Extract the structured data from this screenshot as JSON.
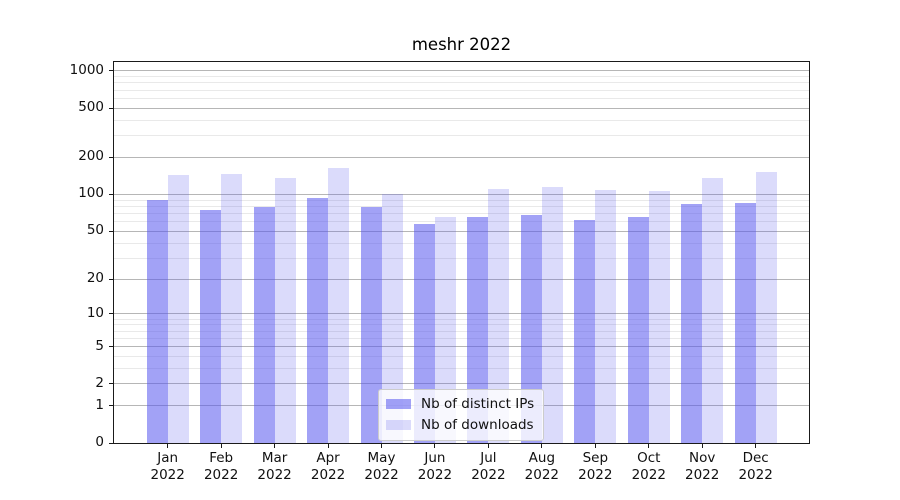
{
  "page": {
    "background": "#ffffff"
  },
  "chart_data": {
    "type": "bar",
    "title": "meshr 2022",
    "categories": [
      "Jan 2022",
      "Feb 2022",
      "Mar 2022",
      "Apr 2022",
      "May 2022",
      "Jun 2022",
      "Jul 2022",
      "Aug 2022",
      "Sep 2022",
      "Oct 2022",
      "Nov 2022",
      "Dec 2022"
    ],
    "month_labels": [
      "Jan",
      "Feb",
      "Mar",
      "Apr",
      "May",
      "Jun",
      "Jul",
      "Aug",
      "Sep",
      "Oct",
      "Nov",
      "Dec"
    ],
    "year_label": "2022",
    "series": [
      {
        "name": "Nb of distinct IPs",
        "color": "rgba(85,85,238,0.55)",
        "color_hex": "#a1a1f5",
        "values": [
          90,
          75,
          79,
          94,
          79,
          57,
          65,
          68,
          62,
          65,
          83,
          86
        ]
      },
      {
        "name": "Nb of downloads",
        "color": "rgba(85,85,238,0.21)",
        "color_hex": "#dcdcf9",
        "values": [
          145,
          148,
          137,
          165,
          100,
          66,
          111,
          115,
          108,
          106,
          135,
          151
        ]
      }
    ],
    "y_axis": {
      "scale": "log-like (position ~ log10(1+y))",
      "tick_values": [
        0,
        1,
        2,
        5,
        10,
        20,
        50,
        100,
        200,
        500,
        1000
      ],
      "minor_tick_values": [
        3,
        4,
        6,
        7,
        8,
        9,
        30,
        40,
        60,
        70,
        80,
        90,
        300,
        400,
        600,
        700,
        800,
        900
      ],
      "range": [
        0,
        1178
      ]
    },
    "grid": {
      "major_color": "#b6b6b6",
      "minor_color": "#e9e9e9",
      "grid_on": true
    },
    "legend": {
      "location": "inside-bottom-center"
    }
  }
}
